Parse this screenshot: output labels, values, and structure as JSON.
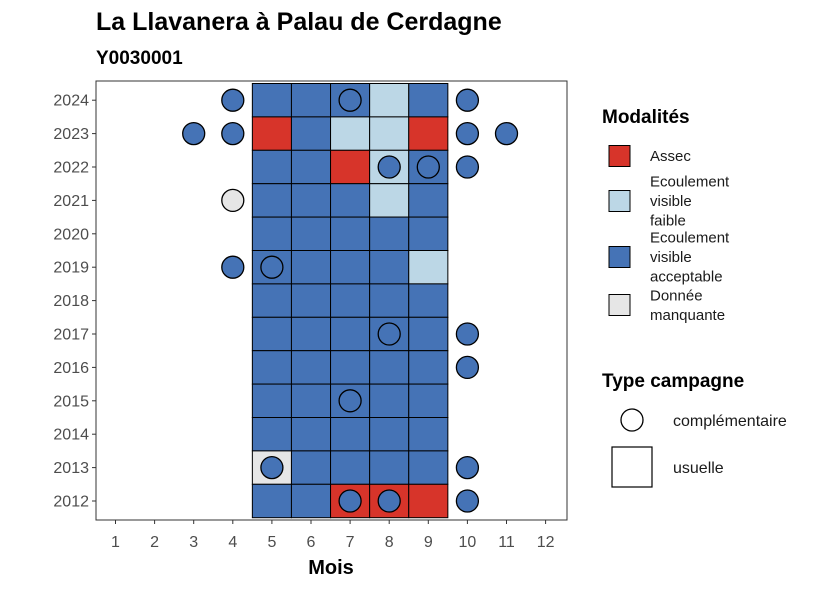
{
  "chart_data": {
    "type": "heatmap",
    "title": "La Llavanera à Palau de Cerdagne",
    "subtitle": "Y0030001",
    "xlabel": "Mois",
    "ylabel": "",
    "x_categories": [
      "1",
      "2",
      "3",
      "4",
      "5",
      "6",
      "7",
      "8",
      "9",
      "10",
      "11",
      "12"
    ],
    "y_categories": [
      "2012",
      "2013",
      "2014",
      "2015",
      "2016",
      "2017",
      "2018",
      "2019",
      "2020",
      "2021",
      "2022",
      "2023",
      "2024"
    ],
    "grid": false,
    "colors": {
      "assec": "#d7342a",
      "faible": "#bcd7e6",
      "acceptable": "#4573b6",
      "manquante": "#e6e6e6"
    },
    "legend": {
      "position": "right",
      "modalites_title": "Modalités",
      "modalites": [
        {
          "key": "assec",
          "lines": [
            "Assec"
          ]
        },
        {
          "key": "faible",
          "lines": [
            "Ecoulement",
            "visible",
            "faible"
          ]
        },
        {
          "key": "acceptable",
          "lines": [
            "Ecoulement",
            "visible",
            "acceptable"
          ]
        },
        {
          "key": "manquante",
          "lines": [
            "Donnée",
            "manquante"
          ]
        }
      ],
      "campagne_title": "Type campagne",
      "campagne": [
        {
          "shape": "circle",
          "label": "complémentaire"
        },
        {
          "shape": "square",
          "label": "usuelle"
        }
      ]
    },
    "usuelle_cells": [
      {
        "year": "2024",
        "months": [
          "acceptable",
          "acceptable",
          "acceptable",
          "faible",
          "acceptable"
        ]
      },
      {
        "year": "2023",
        "months": [
          "assec",
          "acceptable",
          "faible",
          "faible",
          "assec"
        ]
      },
      {
        "year": "2022",
        "months": [
          "acceptable",
          "acceptable",
          "assec",
          "faible",
          "acceptable"
        ]
      },
      {
        "year": "2021",
        "months": [
          "acceptable",
          "acceptable",
          "acceptable",
          "faible",
          "acceptable"
        ]
      },
      {
        "year": "2020",
        "months": [
          "acceptable",
          "acceptable",
          "acceptable",
          "acceptable",
          "acceptable"
        ]
      },
      {
        "year": "2019",
        "months": [
          "acceptable",
          "acceptable",
          "acceptable",
          "acceptable",
          "faible"
        ]
      },
      {
        "year": "2018",
        "months": [
          "acceptable",
          "acceptable",
          "acceptable",
          "acceptable",
          "acceptable"
        ]
      },
      {
        "year": "2017",
        "months": [
          "acceptable",
          "acceptable",
          "acceptable",
          "acceptable",
          "acceptable"
        ]
      },
      {
        "year": "2016",
        "months": [
          "acceptable",
          "acceptable",
          "acceptable",
          "acceptable",
          "acceptable"
        ]
      },
      {
        "year": "2015",
        "months": [
          "acceptable",
          "acceptable",
          "acceptable",
          "acceptable",
          "acceptable"
        ]
      },
      {
        "year": "2014",
        "months": [
          "acceptable",
          "acceptable",
          "acceptable",
          "acceptable",
          "acceptable"
        ]
      },
      {
        "year": "2013",
        "months": [
          "manquante",
          "acceptable",
          "acceptable",
          "acceptable",
          "acceptable"
        ]
      },
      {
        "year": "2012",
        "months": [
          "acceptable",
          "acceptable",
          "assec",
          "assec",
          "assec"
        ]
      }
    ],
    "usuelle_months": [
      "5",
      "6",
      "7",
      "8",
      "9"
    ],
    "complementaire_points": [
      {
        "year": "2024",
        "month": "4",
        "value": "acceptable"
      },
      {
        "year": "2024",
        "month": "7",
        "value": "acceptable"
      },
      {
        "year": "2024",
        "month": "10",
        "value": "acceptable"
      },
      {
        "year": "2023",
        "month": "3",
        "value": "acceptable"
      },
      {
        "year": "2023",
        "month": "4",
        "value": "acceptable"
      },
      {
        "year": "2023",
        "month": "10",
        "value": "acceptable"
      },
      {
        "year": "2023",
        "month": "11",
        "value": "acceptable"
      },
      {
        "year": "2022",
        "month": "8",
        "value": "acceptable"
      },
      {
        "year": "2022",
        "month": "9",
        "value": "acceptable"
      },
      {
        "year": "2022",
        "month": "10",
        "value": "acceptable"
      },
      {
        "year": "2021",
        "month": "4",
        "value": "manquante"
      },
      {
        "year": "2019",
        "month": "4",
        "value": "acceptable"
      },
      {
        "year": "2019",
        "month": "5",
        "value": "acceptable"
      },
      {
        "year": "2017",
        "month": "8",
        "value": "acceptable"
      },
      {
        "year": "2017",
        "month": "10",
        "value": "acceptable"
      },
      {
        "year": "2016",
        "month": "10",
        "value": "acceptable"
      },
      {
        "year": "2015",
        "month": "7",
        "value": "acceptable"
      },
      {
        "year": "2013",
        "month": "5",
        "value": "acceptable"
      },
      {
        "year": "2013",
        "month": "10",
        "value": "acceptable"
      },
      {
        "year": "2012",
        "month": "7",
        "value": "acceptable"
      },
      {
        "year": "2012",
        "month": "8",
        "value": "acceptable"
      },
      {
        "year": "2012",
        "month": "10",
        "value": "acceptable"
      }
    ]
  }
}
